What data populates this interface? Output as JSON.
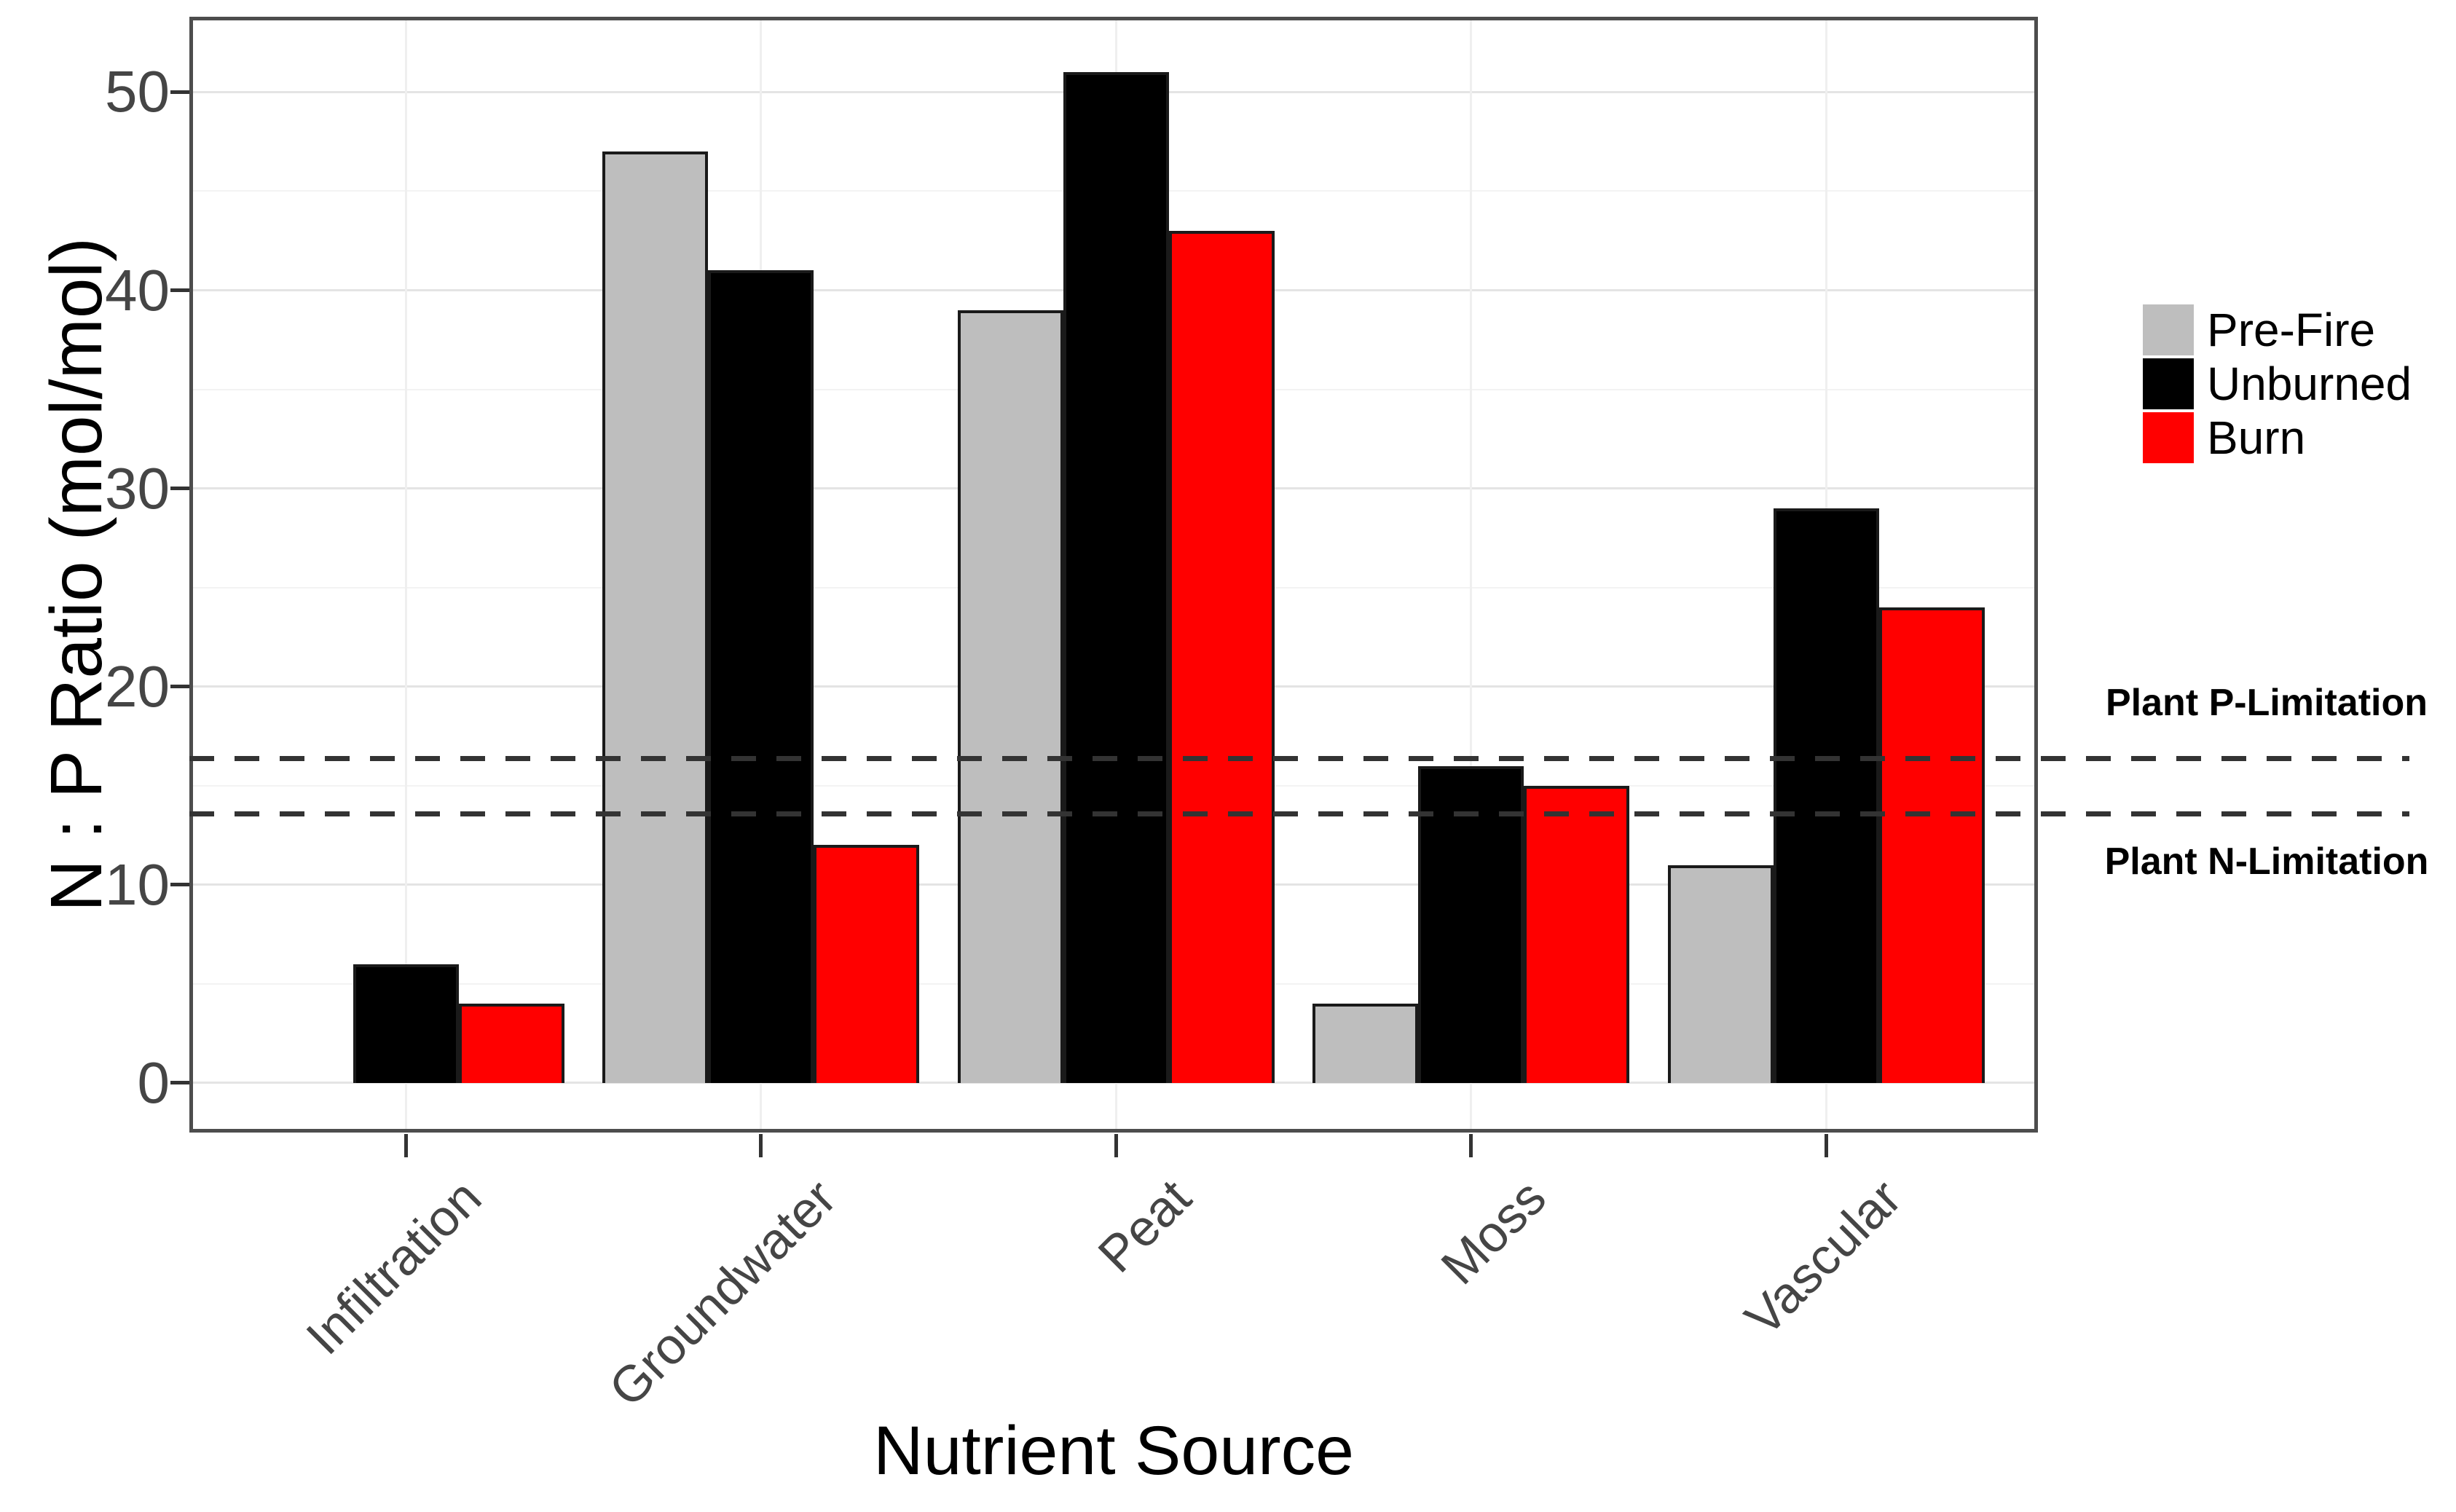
{
  "chart_data": {
    "type": "bar",
    "title": "",
    "categories": [
      "Infiltration",
      "Groundwater",
      "Peat",
      "Moss",
      "Vascular"
    ],
    "series": [
      {
        "name": "Pre-Fire",
        "color": "#bebebe",
        "values": [
          0,
          47,
          39,
          4,
          11
        ]
      },
      {
        "name": "Unburned",
        "color": "#000000",
        "values": [
          6,
          41,
          51,
          16,
          29
        ]
      },
      {
        "name": "Burn",
        "color": "#ff0000",
        "values": [
          4,
          12,
          43,
          15,
          24
        ]
      }
    ],
    "xlabel": "Nutrient Source",
    "ylabel": "N : P Ratio (mol/mol)",
    "y_ticks": [
      0,
      10,
      20,
      30,
      40,
      50
    ],
    "y_minor_ticks": [
      5,
      15,
      25,
      35,
      45
    ],
    "ylim": [
      -2.5,
      53.8
    ],
    "grid": "horizontal major+minor light gray, vertical at category centers",
    "legend_position": "right",
    "bar_outline_color": "#1a1a1a",
    "reference_lines": [
      {
        "label": "Plant P-Limitation",
        "value": 16.4,
        "style": "dashed",
        "color": "#333333",
        "label_position": "above-right"
      },
      {
        "label": "Plant N-Limitation",
        "value": 13.6,
        "style": "dashed",
        "color": "#333333",
        "label_position": "below-right"
      }
    ]
  }
}
